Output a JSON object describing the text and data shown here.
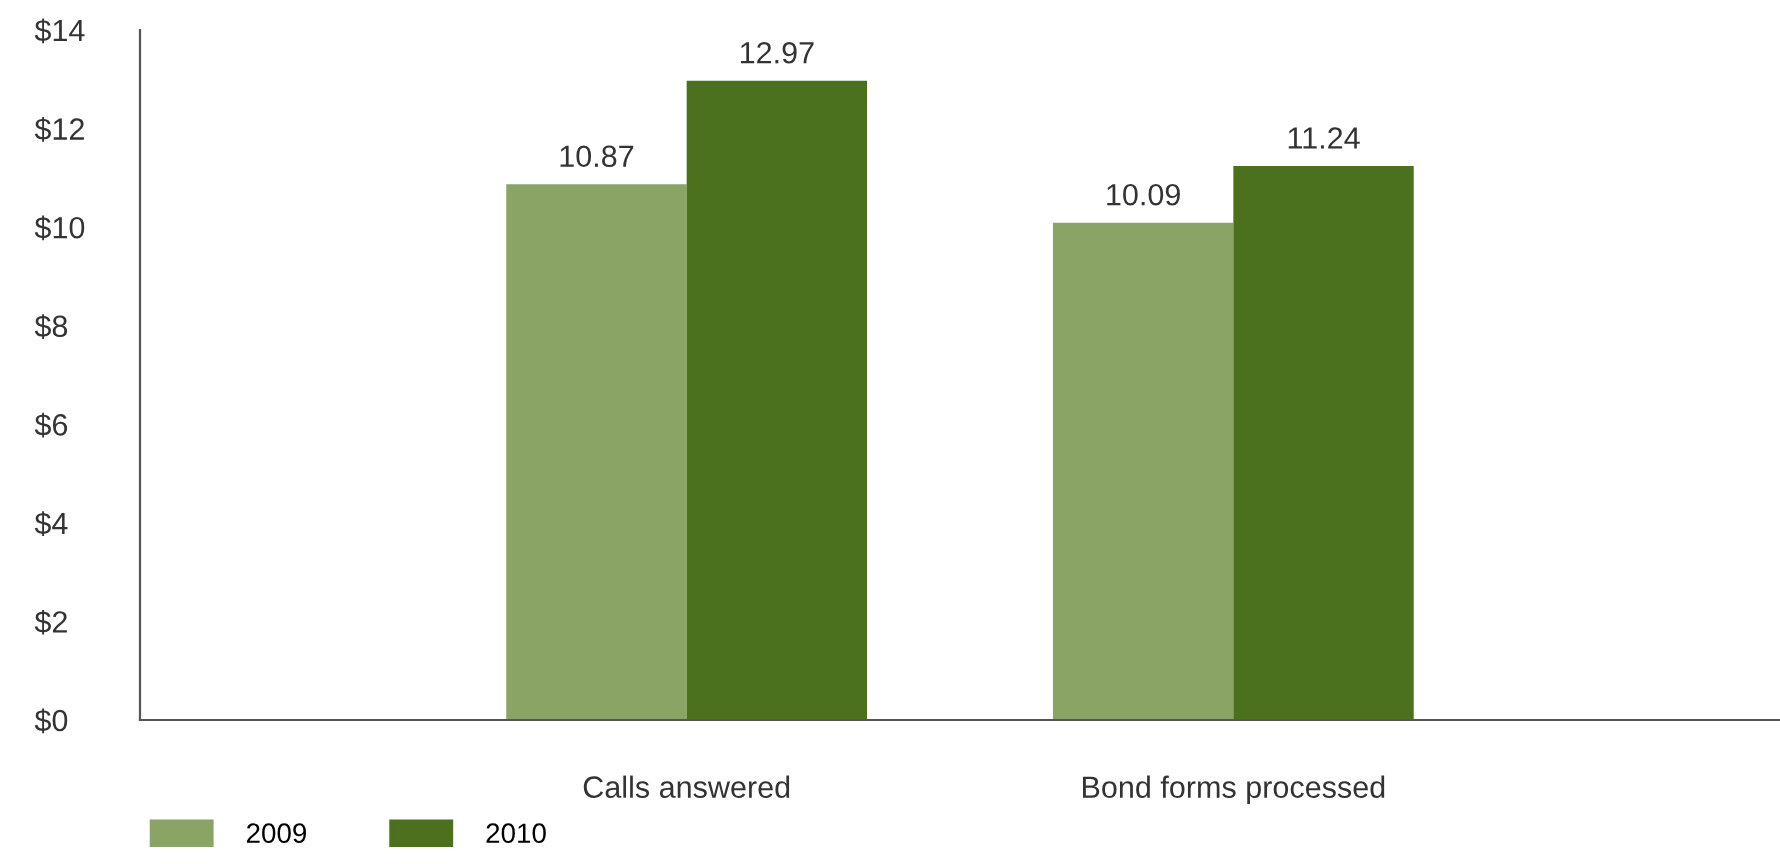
{
  "chart_data": {
    "type": "bar",
    "categories": [
      "Calls answered",
      "Bond forms processed"
    ],
    "series": [
      {
        "name": "2009",
        "color": "#89a465",
        "values": [
          10.87,
          10.09
        ]
      },
      {
        "name": "2010",
        "color": "#4b711e",
        "values": [
          12.97,
          11.24
        ]
      }
    ],
    "ylim": [
      0,
      14
    ],
    "yticks": [
      {
        "value": 0,
        "label": "$0"
      },
      {
        "value": 2,
        "label": "$2"
      },
      {
        "value": 4,
        "label": "$4"
      },
      {
        "value": 6,
        "label": "$6"
      },
      {
        "value": 8,
        "label": "$8"
      },
      {
        "value": 10,
        "label": "$10"
      },
      {
        "value": 12,
        "label": "$12"
      },
      {
        "value": 14,
        "label": "$14"
      }
    ],
    "data_labels": true,
    "grid": false,
    "legend": "bottom left"
  }
}
